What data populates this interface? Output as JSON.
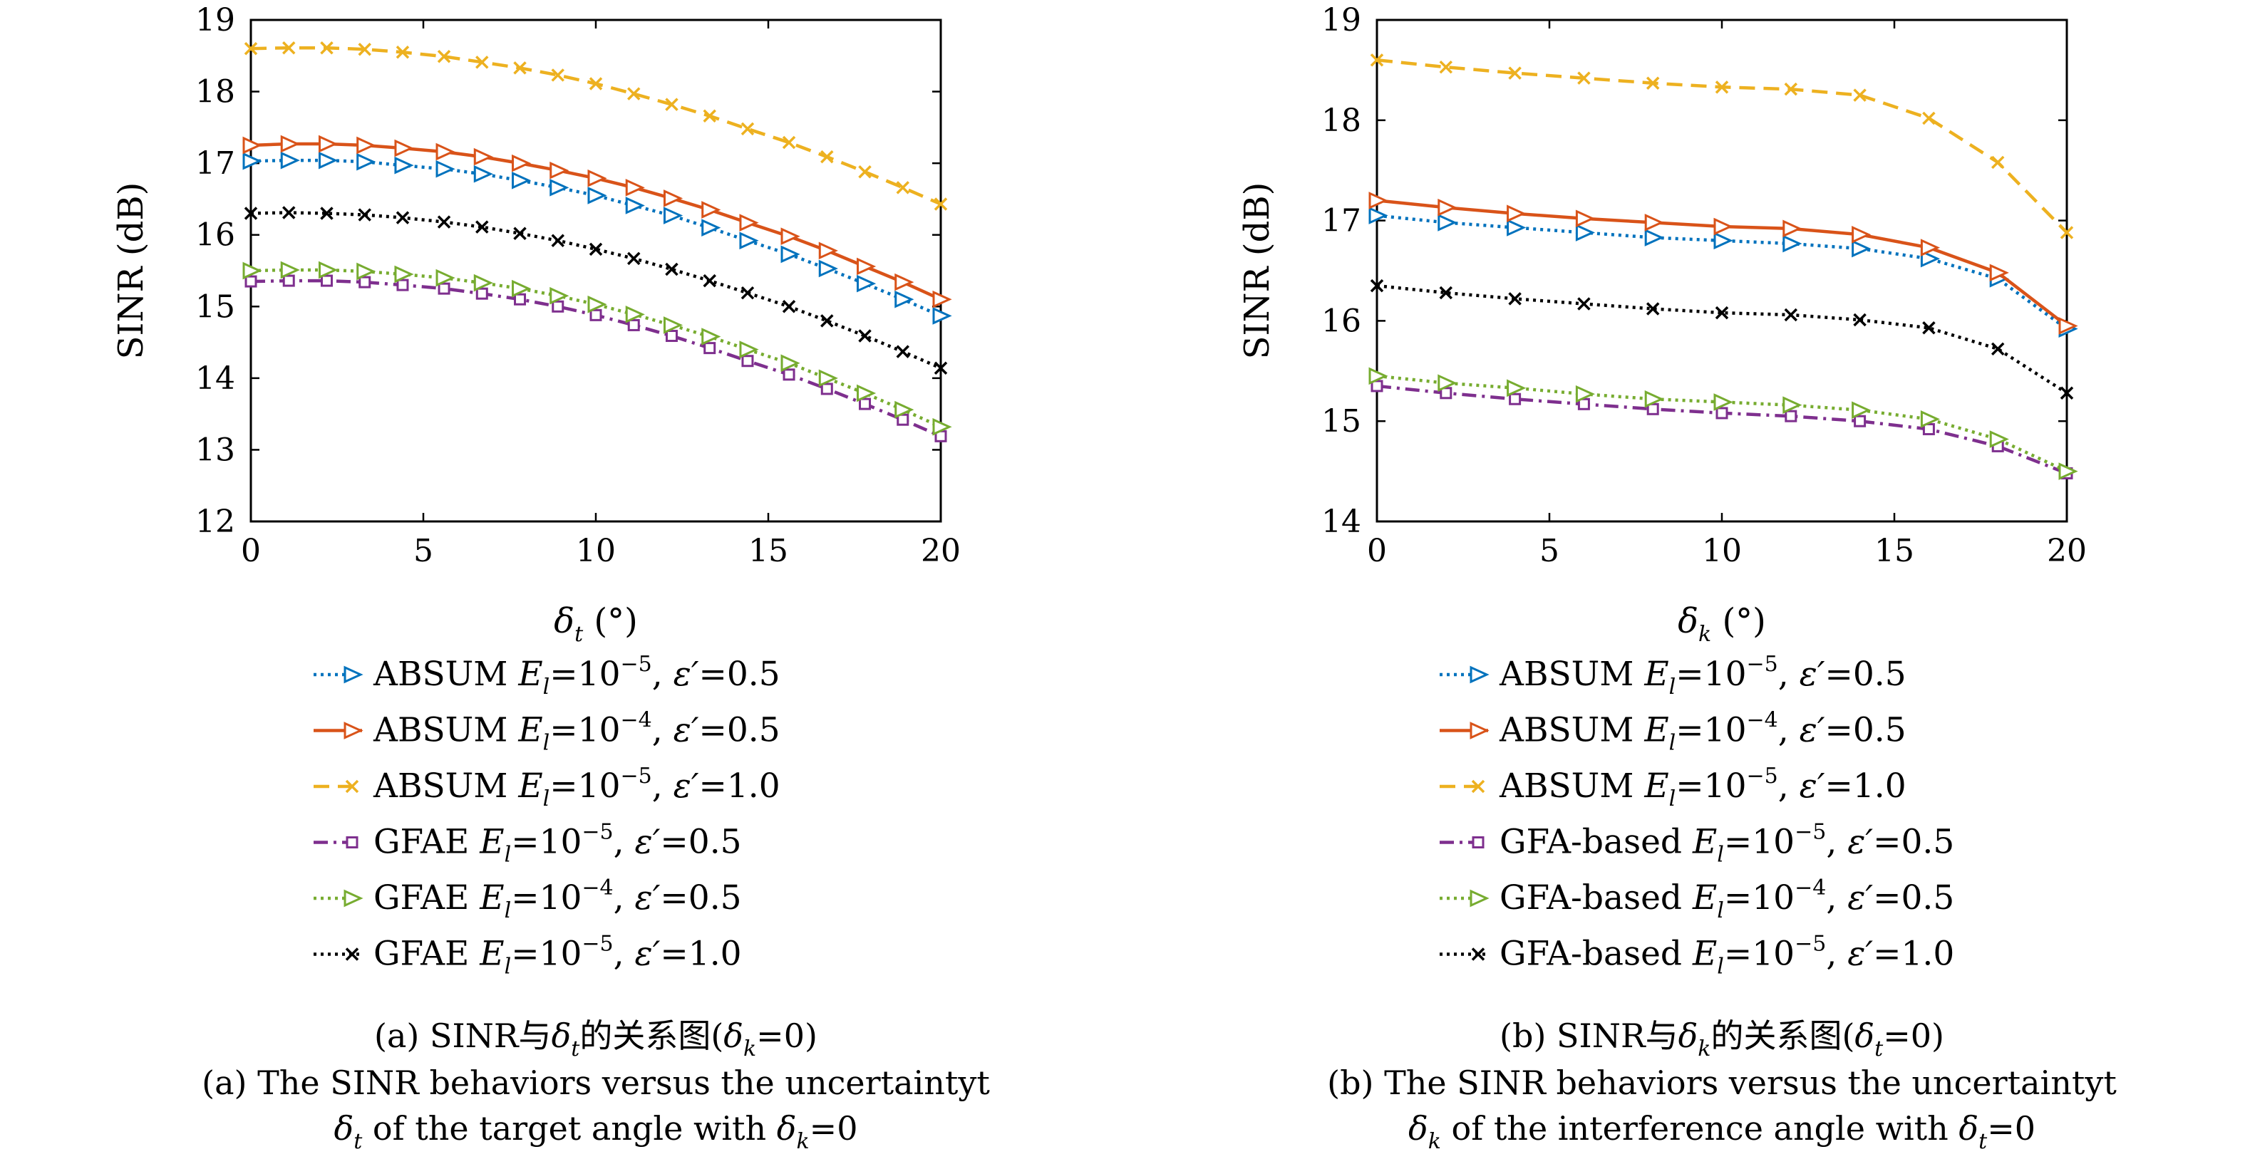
{
  "chart_data": [
    {
      "type": "line",
      "panel": "a",
      "xlabel": "δt (°)",
      "ylabel": "SINR (dB)",
      "xlim": [
        0,
        20
      ],
      "ylim": [
        12,
        19
      ],
      "xticks": [
        "0",
        "5",
        "10",
        "15",
        "20"
      ],
      "yticks": [
        "12",
        "13",
        "14",
        "15",
        "16",
        "17",
        "18",
        "19"
      ],
      "grid": false,
      "legend_position": "below",
      "x": [
        0,
        1.1,
        2.2,
        3.3,
        4.4,
        5.6,
        6.7,
        7.8,
        8.9,
        10,
        11.1,
        12.2,
        13.3,
        14.4,
        15.6,
        16.7,
        17.8,
        18.9,
        20
      ],
      "series": [
        {
          "name": "ABSUM El=10−5, ε′=0.5",
          "values": [
            17.03,
            17.04,
            17.04,
            17.02,
            16.97,
            16.92,
            16.85,
            16.76,
            16.66,
            16.55,
            16.41,
            16.27,
            16.1,
            15.92,
            15.73,
            15.53,
            15.32,
            15.1,
            14.87
          ]
        },
        {
          "name": "ABSUM El=10−4, ε′=0.5",
          "values": [
            17.25,
            17.27,
            17.27,
            17.25,
            17.21,
            17.16,
            17.09,
            17.0,
            16.9,
            16.79,
            16.66,
            16.51,
            16.35,
            16.17,
            15.98,
            15.78,
            15.56,
            15.34,
            15.1
          ]
        },
        {
          "name": "ABSUM El=10−5, ε′=1.0",
          "values": [
            18.6,
            18.61,
            18.61,
            18.59,
            18.55,
            18.49,
            18.41,
            18.33,
            18.23,
            18.11,
            17.97,
            17.82,
            17.66,
            17.48,
            17.29,
            17.09,
            16.88,
            16.66,
            16.43
          ]
        },
        {
          "name": "GFAE El=10−5, ε′=0.5",
          "values": [
            15.35,
            15.36,
            15.36,
            15.34,
            15.3,
            15.25,
            15.18,
            15.1,
            15.0,
            14.88,
            14.74,
            14.59,
            14.42,
            14.24,
            14.05,
            13.85,
            13.64,
            13.42,
            13.19
          ]
        },
        {
          "name": "GFAE El=10−4, ε′=0.5",
          "values": [
            15.5,
            15.51,
            15.51,
            15.49,
            15.45,
            15.4,
            15.33,
            15.25,
            15.15,
            15.03,
            14.89,
            14.74,
            14.58,
            14.4,
            14.21,
            14.0,
            13.79,
            13.56,
            13.32
          ]
        },
        {
          "name": "GFAE El=10−5, ε′=1.0",
          "values": [
            16.3,
            16.31,
            16.3,
            16.28,
            16.24,
            16.18,
            16.11,
            16.02,
            15.92,
            15.8,
            15.67,
            15.52,
            15.36,
            15.19,
            15.0,
            14.8,
            14.59,
            14.37,
            14.14
          ]
        }
      ]
    },
    {
      "type": "line",
      "panel": "b",
      "xlabel": "δk (°)",
      "ylabel": "SINR (dB)",
      "xlim": [
        0,
        20
      ],
      "ylim": [
        14,
        19
      ],
      "xticks": [
        "0",
        "5",
        "10",
        "15",
        "20"
      ],
      "yticks": [
        "14",
        "15",
        "16",
        "17",
        "18",
        "19"
      ],
      "grid": false,
      "legend_position": "below",
      "x": [
        0,
        2,
        4,
        6,
        8,
        10,
        12,
        14,
        16,
        18,
        20
      ],
      "series": [
        {
          "name": "ABSUM El=10−5, ε′=0.5",
          "values": [
            17.05,
            16.98,
            16.93,
            16.88,
            16.83,
            16.8,
            16.77,
            16.72,
            16.62,
            16.42,
            15.92
          ]
        },
        {
          "name": "ABSUM El=10−4, ε′=0.5",
          "values": [
            17.2,
            17.13,
            17.07,
            17.02,
            16.98,
            16.94,
            16.92,
            16.86,
            16.73,
            16.48,
            15.95
          ]
        },
        {
          "name": "ABSUM El=10−5, ε′=1.0",
          "values": [
            18.6,
            18.53,
            18.47,
            18.42,
            18.37,
            18.33,
            18.31,
            18.25,
            18.02,
            17.58,
            16.88
          ]
        },
        {
          "name": "GFA-based El=10−5, ε′=0.5",
          "values": [
            15.35,
            15.28,
            15.22,
            15.17,
            15.12,
            15.08,
            15.05,
            15.0,
            14.92,
            14.75,
            14.48
          ]
        },
        {
          "name": "GFA-based El=10−4, ε′=0.5",
          "values": [
            15.45,
            15.38,
            15.33,
            15.27,
            15.22,
            15.19,
            15.16,
            15.11,
            15.02,
            14.82,
            14.5
          ]
        },
        {
          "name": "GFA-based El=10−5, ε′=1.0",
          "values": [
            16.35,
            16.28,
            16.22,
            16.17,
            16.12,
            16.08,
            16.06,
            16.01,
            15.93,
            15.72,
            15.28
          ]
        }
      ]
    }
  ],
  "legend_a": [
    {
      "method": "ABSUM",
      "exp": "−5",
      "eps": "0.5"
    },
    {
      "method": "ABSUM",
      "exp": "−4",
      "eps": "0.5"
    },
    {
      "method": "ABSUM",
      "exp": "−5",
      "eps": "1.0"
    },
    {
      "method": "GFAE",
      "exp": "−5",
      "eps": "0.5"
    },
    {
      "method": "GFAE",
      "exp": "−4",
      "eps": "0.5"
    },
    {
      "method": "GFAE",
      "exp": "−5",
      "eps": "1.0"
    }
  ],
  "legend_b": [
    {
      "method": "ABSUM",
      "exp": "−5",
      "eps": "0.5"
    },
    {
      "method": "ABSUM",
      "exp": "−4",
      "eps": "0.5"
    },
    {
      "method": "ABSUM",
      "exp": "−5",
      "eps": "1.0"
    },
    {
      "method": "GFA-based",
      "exp": "−5",
      "eps": "0.5"
    },
    {
      "method": "GFA-based",
      "exp": "−4",
      "eps": "0.5"
    },
    {
      "method": "GFA-based",
      "exp": "−5",
      "eps": "1.0"
    }
  ],
  "series_style": [
    {
      "color": "#0072BD",
      "marker": "tri-right",
      "dash": "4 6"
    },
    {
      "color": "#D95319",
      "marker": "tri-right",
      "dash": ""
    },
    {
      "color": "#EDB120",
      "marker": "x",
      "dash": "22 12"
    },
    {
      "color": "#7E2F8E",
      "marker": "square",
      "dash": "20 8 4 8"
    },
    {
      "color": "#77AC30",
      "marker": "tri-right",
      "dash": "4 6"
    },
    {
      "color": "#000000",
      "marker": "x",
      "dash": "4 6"
    }
  ],
  "captions": {
    "a": {
      "cn_prefix": "(a) SINR与",
      "cn_delta": "δ",
      "cn_sub": "t",
      "cn_mid": "的关系图(",
      "cn_delta2": "δ",
      "cn_sub2": "k",
      "cn_end": "=0)",
      "en_line1": "(a) The SINR behaviors versus the uncertaintyt",
      "en_line2_delta": "δ",
      "en_line2_sub": "t",
      "en_line2_mid": " of the target angle with ",
      "en_line2_delta2": "δ",
      "en_line2_sub2": "k",
      "en_line2_end": "=0"
    },
    "b": {
      "cn_prefix": "(b) SINR与",
      "cn_delta": "δ",
      "cn_sub": "k",
      "cn_mid": "的关系图(",
      "cn_delta2": "δ",
      "cn_sub2": "t",
      "cn_end": "=0)",
      "en_line1": "(b) The SINR behaviors versus the uncertaintyt",
      "en_line2_delta": "δ",
      "en_line2_sub": "k",
      "en_line2_mid": " of the interference angle with ",
      "en_line2_delta2": "δ",
      "en_line2_sub2": "t",
      "en_line2_end": "=0"
    }
  },
  "symbols": {
    "E": "E",
    "l": "l",
    "eq10": "=10",
    "eps": "ε′",
    "eq": "=",
    "comma": ",",
    "deg_a": "δ",
    "deg_open": " (°)"
  }
}
